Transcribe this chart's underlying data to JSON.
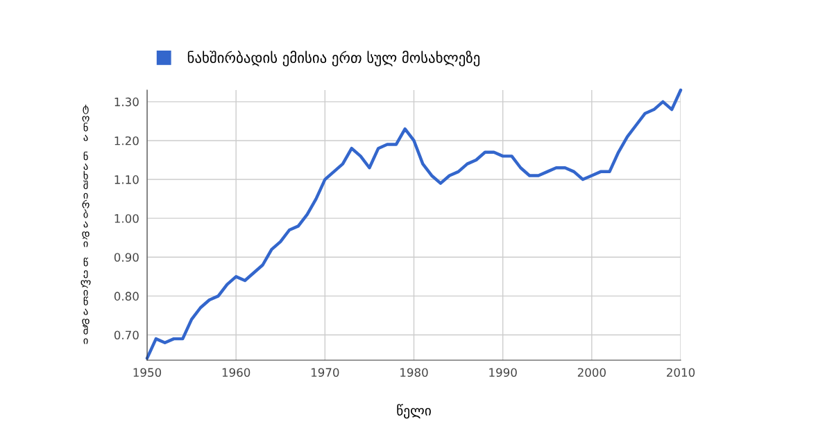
{
  "chart_data": {
    "type": "line",
    "xlabel": "წელი",
    "ylabel": "ტონა ნახშირბადი წელიწადში",
    "x": [
      1950,
      1951,
      1952,
      1953,
      1954,
      1955,
      1956,
      1957,
      1958,
      1959,
      1960,
      1961,
      1962,
      1963,
      1964,
      1965,
      1966,
      1967,
      1968,
      1969,
      1970,
      1971,
      1972,
      1973,
      1974,
      1975,
      1976,
      1977,
      1978,
      1979,
      1980,
      1981,
      1982,
      1983,
      1984,
      1985,
      1986,
      1987,
      1988,
      1989,
      1990,
      1991,
      1992,
      1993,
      1994,
      1995,
      1996,
      1997,
      1998,
      1999,
      2000,
      2001,
      2002,
      2003,
      2004,
      2005,
      2006,
      2007,
      2008,
      2009,
      2010
    ],
    "series": [
      {
        "name": "ნახშირბადის ემისია ერთ სულ მოსახლეზე",
        "color": "#3366cc",
        "values": [
          0.64,
          0.69,
          0.68,
          0.69,
          0.69,
          0.74,
          0.77,
          0.79,
          0.8,
          0.83,
          0.85,
          0.84,
          0.86,
          0.88,
          0.92,
          0.94,
          0.97,
          0.98,
          1.01,
          1.05,
          1.1,
          1.12,
          1.14,
          1.18,
          1.16,
          1.13,
          1.18,
          1.19,
          1.19,
          1.23,
          1.2,
          1.14,
          1.11,
          1.09,
          1.11,
          1.12,
          1.14,
          1.15,
          1.17,
          1.17,
          1.16,
          1.16,
          1.13,
          1.11,
          1.11,
          1.12,
          1.13,
          1.13,
          1.12,
          1.1,
          1.11,
          1.12,
          1.12,
          1.17,
          1.21,
          1.24,
          1.27,
          1.28,
          1.3,
          1.28,
          1.33
        ]
      }
    ],
    "xlim": [
      1950,
      2010
    ],
    "xticks": [
      1950,
      1960,
      1970,
      1980,
      1990,
      2000,
      2010
    ],
    "ylim": [
      0.635,
      1.33
    ],
    "yticks": [
      {
        "value": 0.7,
        "label": "0.70"
      },
      {
        "value": 0.8,
        "label": "0.80"
      },
      {
        "value": 0.9,
        "label": "0.90"
      },
      {
        "value": 1.0,
        "label": "1.00"
      },
      {
        "value": 1.1,
        "label": "1.10"
      },
      {
        "value": 1.2,
        "label": "1.20"
      },
      {
        "value": 1.3,
        "label": "1.30"
      }
    ],
    "grid": true,
    "legend": "top left",
    "marker": "none",
    "line_style": "solid"
  }
}
